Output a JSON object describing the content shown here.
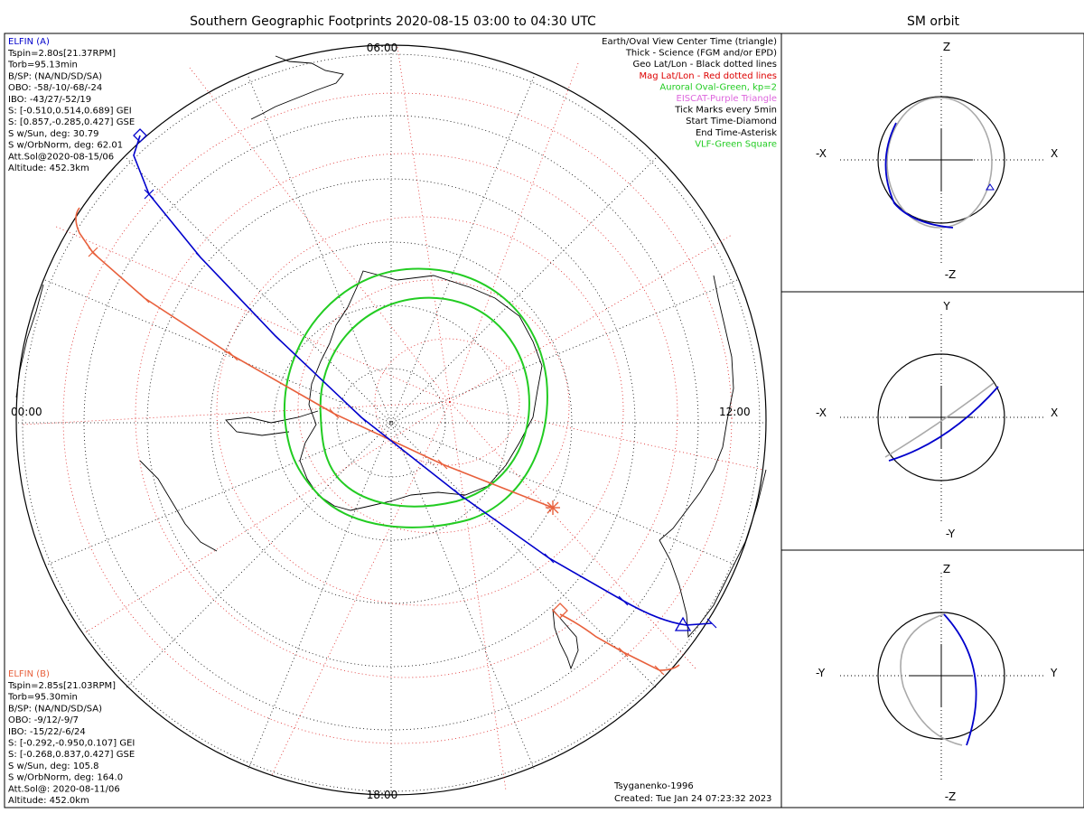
{
  "main": {
    "title": "Southern Geographic Footprints 2020-08-15 03:00 to 04:30 UTC",
    "time_labels": {
      "top": "06:00",
      "left": "00:00",
      "right": "12:00",
      "bottom": "18:00"
    }
  },
  "sm_title": "SM orbit",
  "elfin_a": {
    "header": "ELFIN (A)",
    "color": "#0000cc",
    "lines": [
      "Tspin=2.80s[21.37RPM]",
      "Torb=95.13min",
      "B/SP: (NA/ND/SD/SA)",
      "OBO: -58/-10/-68/-24",
      "IBO: -43/27/-52/19",
      "S: [-0.510,0.514,0.689] GEI",
      "S: [0.857,-0.285,0.427] GSE",
      "S w/Sun, deg: 30.79",
      "S w/OrbNorm, deg: 62.01",
      "Att.Sol@2020-08-15/06",
      "Altitude: 452.3km"
    ]
  },
  "elfin_b": {
    "header": "ELFIN (B)",
    "color": "#e8603c",
    "lines": [
      "Tspin=2.85s[21.03RPM]",
      "Torb=95.30min",
      "B/SP: (NA/ND/SD/SA)",
      "OBO: -9/12/-9/7",
      "IBO: -15/22/-6/24",
      "S: [-0.292,-0.950,0.107] GEI",
      "S: [-0.268,0.837,0.427] GSE",
      "S w/Sun, deg: 105.8",
      "S w/OrbNorm, deg: 164.0",
      "Att.Sol@: 2020-08-11/06",
      "Altitude: 452.0km"
    ]
  },
  "legend": [
    {
      "text": "Earth/Oval View Center Time (triangle)",
      "color": "#000000"
    },
    {
      "text": "Thick - Science (FGM and/or EPD)",
      "color": "#000000"
    },
    {
      "text": "Geo Lat/Lon - Black dotted lines",
      "color": "#000000"
    },
    {
      "text": "Mag Lat/Lon - Red dotted lines",
      "color": "#dd0000"
    },
    {
      "text": "Auroral Oval-Green, kp=2",
      "color": "#22cc22"
    },
    {
      "text": "EISCAT-Purple Triangle",
      "color": "#dd66dd"
    },
    {
      "text": "Tick Marks every 5min",
      "color": "#000000"
    },
    {
      "text": "Start Time-Diamond",
      "color": "#000000"
    },
    {
      "text": "End Time-Asterisk",
      "color": "#000000"
    },
    {
      "text": "VLF-Green Square",
      "color": "#22cc22"
    }
  ],
  "credits": {
    "model": "Tsyganenko-1996",
    "created": "Created: Tue Jan 24 07:23:32 2023"
  },
  "sm_panels": [
    {
      "top": "Z",
      "bottom": "-Z",
      "left": "-X",
      "right": "X"
    },
    {
      "top": "Y",
      "bottom": "-Y",
      "left": "-X",
      "right": "X"
    },
    {
      "top": "Z",
      "bottom": "-Z",
      "left": "-Y",
      "right": "Y"
    }
  ],
  "colors": {
    "elfin_a": "#0000cc",
    "elfin_b": "#e8603c",
    "oval": "#22cc22",
    "mag_grid": "#dd2222",
    "geo_grid": "#000000",
    "orbit_gray": "#aaaaaa"
  }
}
